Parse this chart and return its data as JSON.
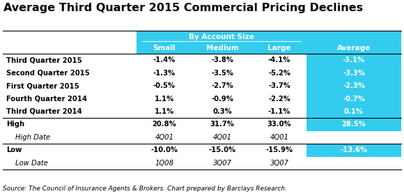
{
  "title": "Average Third Quarter 2015 Commercial Pricing Declines",
  "by_account_size_label": "By Account Size",
  "col_headers": [
    "Small",
    "Medium",
    "Large",
    "Average"
  ],
  "row_labels": [
    "Third Quarter 2015",
    "Second Quarter 2015",
    "First Quarter 2015",
    "Fourth Quarter 2014",
    "Third Quarter 2014",
    "High",
    "High Date",
    "Low",
    "Low Date"
  ],
  "row_italic": [
    false,
    false,
    false,
    false,
    false,
    false,
    true,
    false,
    true
  ],
  "row_bold_label": [
    true,
    true,
    true,
    true,
    true,
    true,
    false,
    true,
    false
  ],
  "cell_data": [
    [
      "-1.4%",
      "-3.8%",
      "-4.1%",
      "-3.1%"
    ],
    [
      "-1.3%",
      "-3.5%",
      "-5.2%",
      "-3.3%"
    ],
    [
      "-0.5%",
      "-2.7%",
      "-3.7%",
      "-2.3%"
    ],
    [
      "1.1%",
      "-0.9%",
      "-2.2%",
      "-0.7%"
    ],
    [
      "1.1%",
      "0.3%",
      "-1.1%",
      "0.1%"
    ],
    [
      "20.8%",
      "31.7%",
      "33.0%",
      "28.5%"
    ],
    [
      "4Q01",
      "4Q01",
      "4Q01",
      ""
    ],
    [
      "-10.0%",
      "-15.0%",
      "-15.9%",
      "-13.6%"
    ],
    [
      "1Q08",
      "3Q07",
      "3Q07",
      ""
    ]
  ],
  "cell_italic": [
    [
      false,
      false,
      false,
      false
    ],
    [
      false,
      false,
      false,
      false
    ],
    [
      false,
      false,
      false,
      false
    ],
    [
      false,
      false,
      false,
      false
    ],
    [
      false,
      false,
      false,
      false
    ],
    [
      false,
      false,
      false,
      false
    ],
    [
      true,
      true,
      true,
      false
    ],
    [
      false,
      false,
      false,
      false
    ],
    [
      true,
      true,
      true,
      false
    ]
  ],
  "avg_col_rows": [
    0,
    1,
    2,
    3,
    4,
    5,
    7
  ],
  "source_text": "Source: The Council of Insurance Agents & Brokers. Chart prepared by Barclays Research.",
  "header_bg_color": "#33CCEE",
  "header_text_color": "#FFFFFF",
  "average_col_bg": "#33CCEE",
  "average_col_text": "#FFFFFF",
  "row_separator_after": [
    4,
    6,
    8
  ],
  "title_fontsize": 11.5,
  "header_fontsize": 7.5,
  "cell_fontsize": 7.2,
  "source_fontsize": 6.5,
  "fig_width": 5.8,
  "fig_height": 2.81,
  "bg_color": "#FFFFFF"
}
